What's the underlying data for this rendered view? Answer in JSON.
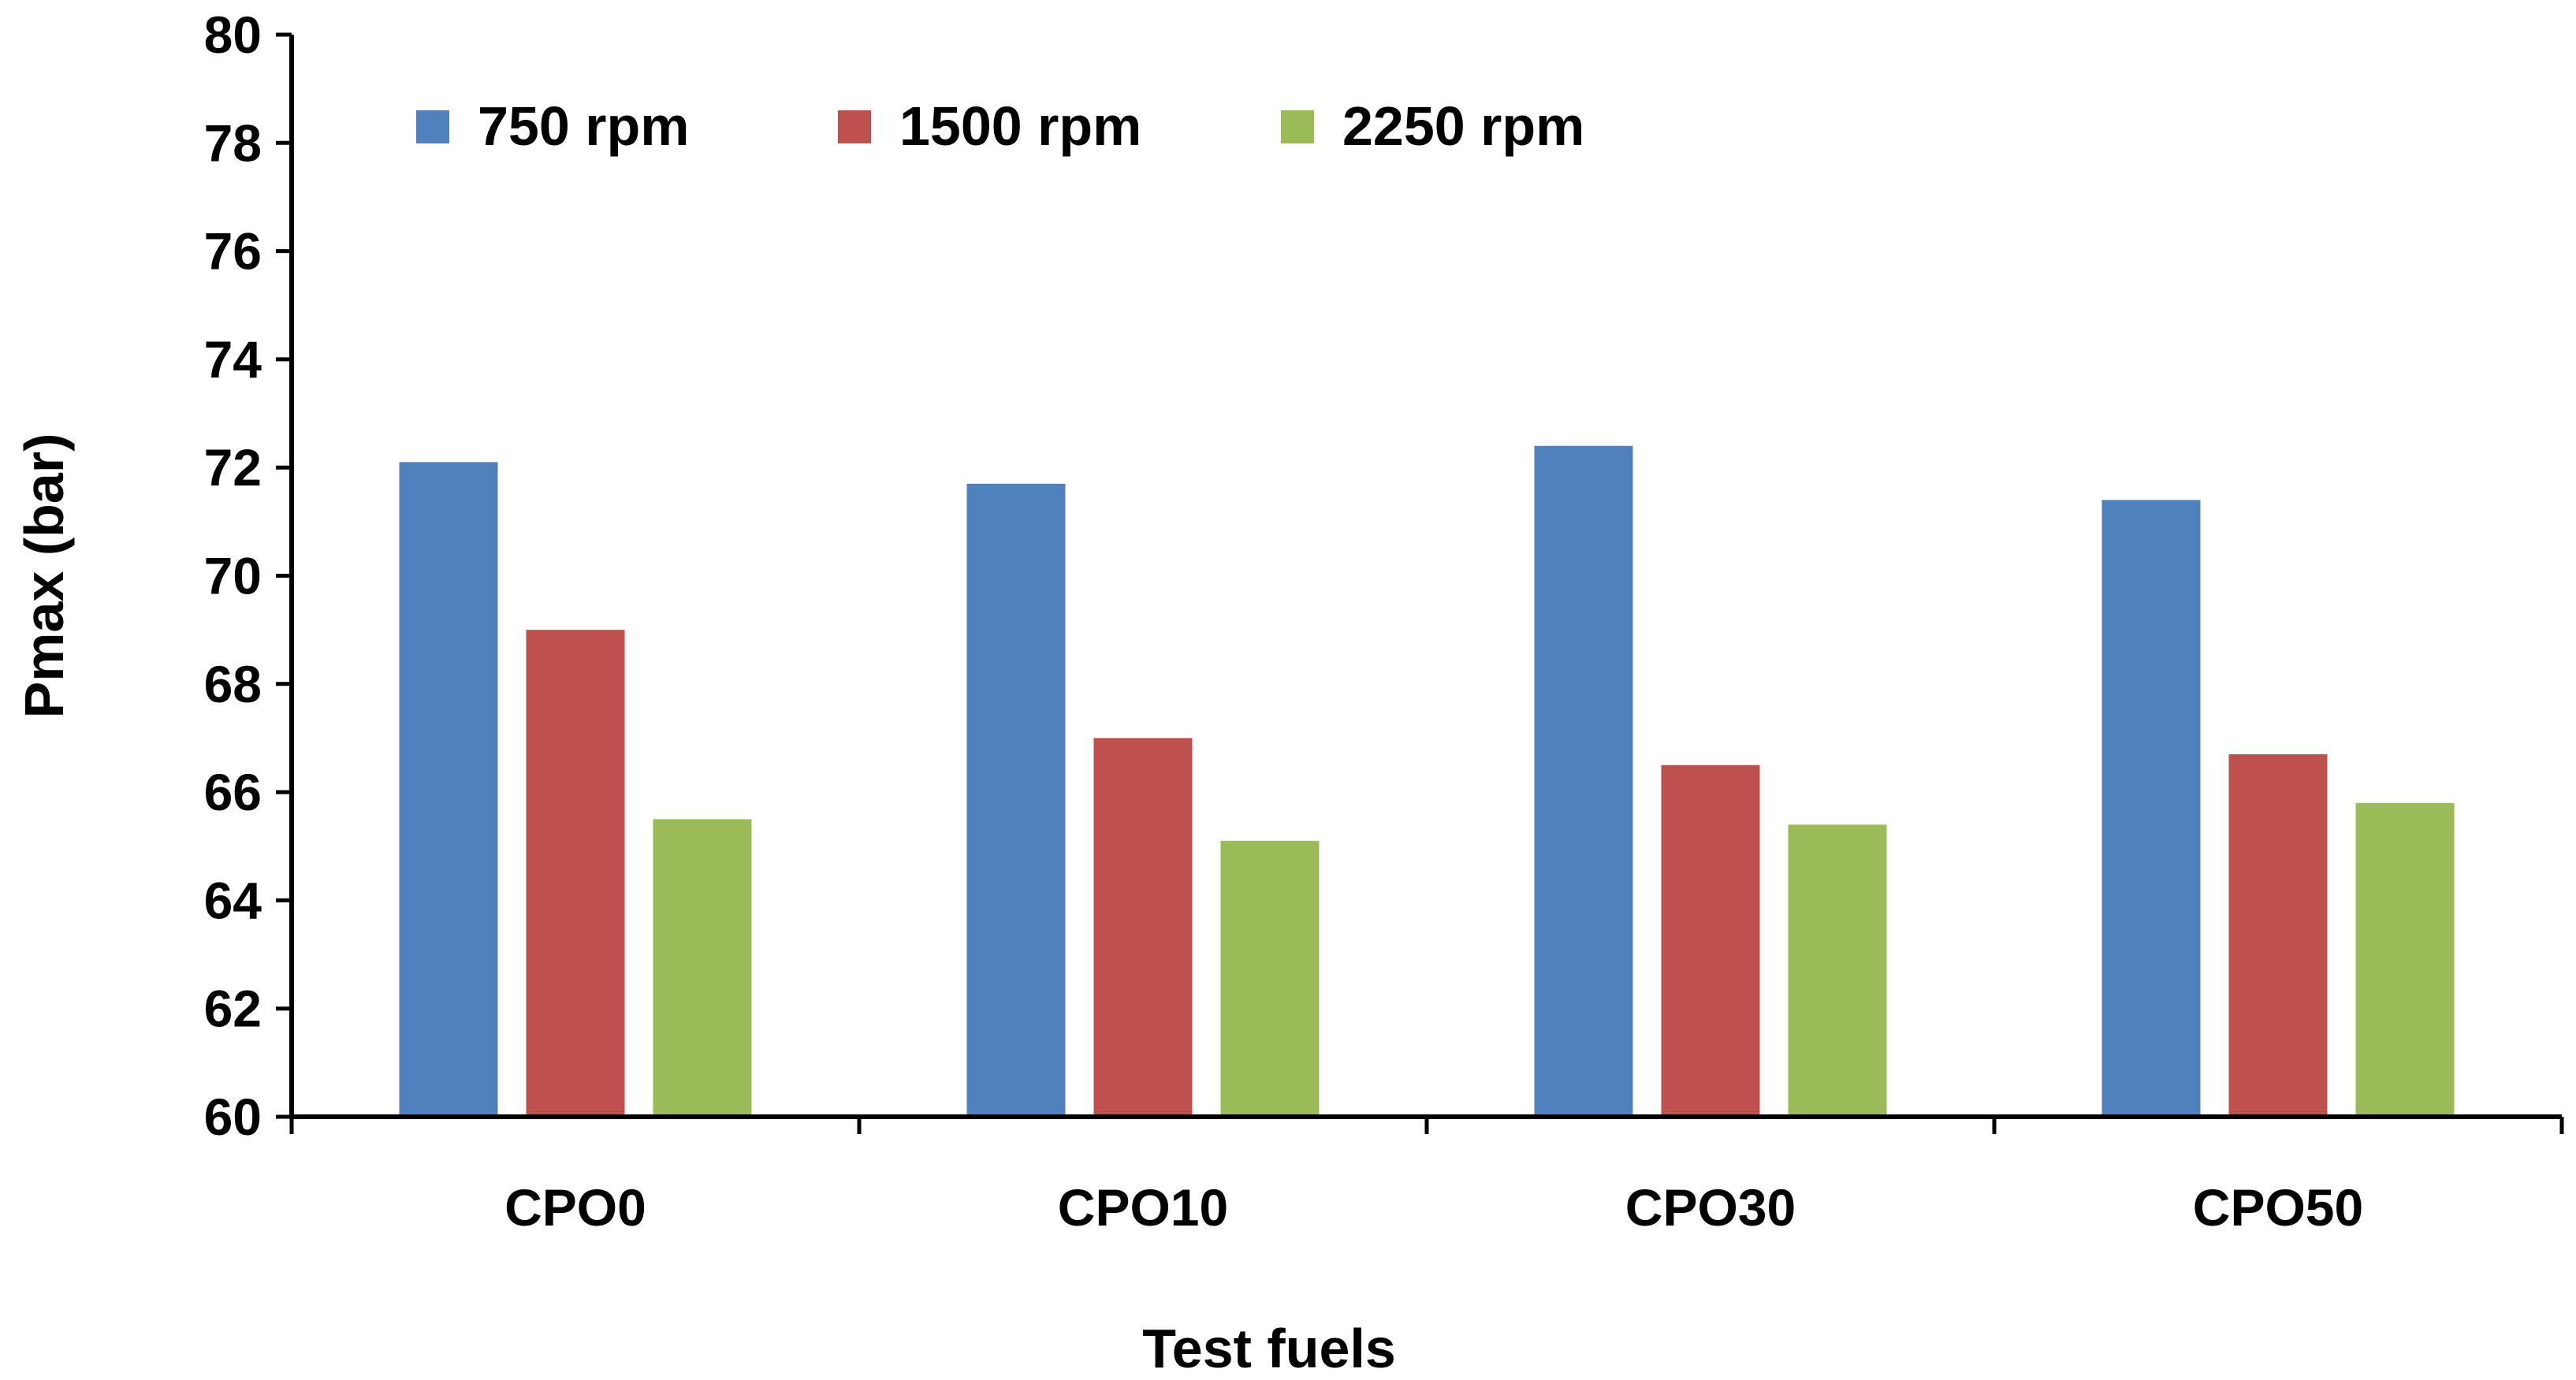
{
  "chart_data": {
    "type": "bar",
    "title": "",
    "xlabel": "Test fuels",
    "ylabel": "Pmax (bar)",
    "ylim": [
      60,
      80
    ],
    "ytick_step": 2,
    "yticks": [
      "60",
      "62",
      "64",
      "66",
      "68",
      "70",
      "72",
      "74",
      "76",
      "78",
      "80"
    ],
    "grid": false,
    "legend_position": "top-left",
    "categories": [
      "CPO0",
      "CPO10",
      "CPO30",
      "CPO50"
    ],
    "series": [
      {
        "name": "750 rpm",
        "color": "#4F81BD",
        "values": [
          72.1,
          71.7,
          72.4,
          71.4
        ]
      },
      {
        "name": "1500 rpm",
        "color": "#C0504D",
        "values": [
          69.0,
          67.0,
          66.5,
          66.7
        ]
      },
      {
        "name": "2250 rpm",
        "color": "#9BBB59",
        "values": [
          65.5,
          65.1,
          65.4,
          65.8
        ]
      }
    ]
  }
}
